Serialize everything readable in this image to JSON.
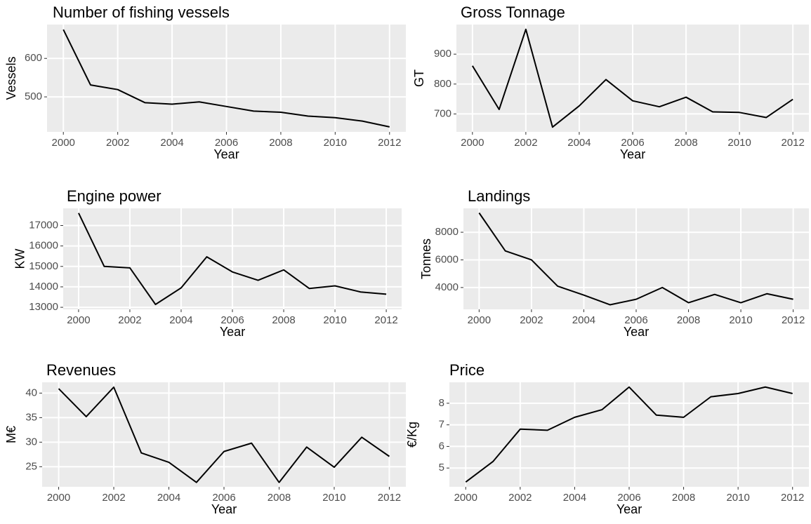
{
  "chart_data": [
    {
      "type": "line",
      "title": "Number of fishing vessels",
      "x_label": "Year",
      "y_label": "Vessels",
      "color": "#000000",
      "grid": true,
      "x": [
        2000,
        2001,
        2002,
        2003,
        2004,
        2005,
        2006,
        2007,
        2008,
        2009,
        2010,
        2011,
        2012
      ],
      "values": [
        675,
        531,
        519,
        485,
        481,
        487,
        475,
        463,
        460,
        450,
        446,
        437,
        422
      ],
      "xlim": [
        1999.4,
        2012.6
      ],
      "xticks": [
        2000,
        2002,
        2004,
        2006,
        2008,
        2010,
        2012
      ],
      "ylim": [
        409,
        688
      ],
      "yticks": [
        500,
        600
      ]
    },
    {
      "type": "line",
      "title": "Gross Tonnage",
      "x_label": "Year",
      "y_label": "GT",
      "color": "#000000",
      "grid": true,
      "x": [
        2000,
        2001,
        2002,
        2003,
        2004,
        2005,
        2006,
        2007,
        2008,
        2009,
        2010,
        2011,
        2012
      ],
      "values": [
        861,
        715,
        983,
        656,
        727,
        815,
        744,
        724,
        756,
        707,
        705,
        688,
        749
      ],
      "xlim": [
        1999.4,
        2012.6
      ],
      "xticks": [
        2000,
        2002,
        2004,
        2006,
        2008,
        2010,
        2012
      ],
      "ylim": [
        640,
        999
      ],
      "yticks": [
        700,
        800,
        900
      ]
    },
    {
      "type": "line",
      "title": "Engine power",
      "x_label": "Year",
      "y_label": "KW",
      "color": "#000000",
      "grid": true,
      "x": [
        2000,
        2001,
        2002,
        2003,
        2004,
        2005,
        2006,
        2007,
        2008,
        2009,
        2010,
        2011,
        2012
      ],
      "values": [
        17610,
        15000,
        14930,
        13140,
        13950,
        15470,
        14730,
        14320,
        14830,
        13920,
        14050,
        13750,
        13640
      ],
      "xlim": [
        1999.4,
        2012.6
      ],
      "xticks": [
        2000,
        2002,
        2004,
        2006,
        2008,
        2010,
        2012
      ],
      "ylim": [
        12900,
        17840
      ],
      "yticks": [
        13000,
        14000,
        15000,
        16000,
        17000
      ]
    },
    {
      "type": "line",
      "title": "Landings",
      "x_label": "Year",
      "y_label": "Tonnes",
      "color": "#000000",
      "grid": true,
      "x": [
        2000,
        2001,
        2002,
        2003,
        2004,
        2005,
        2006,
        2007,
        2008,
        2009,
        2010,
        2011,
        2012
      ],
      "values": [
        9400,
        6650,
        6000,
        4100,
        3450,
        2750,
        3150,
        4000,
        2900,
        3500,
        2900,
        3550,
        3150
      ],
      "xlim": [
        1999.4,
        2012.6
      ],
      "xticks": [
        2000,
        2002,
        2004,
        2006,
        2008,
        2010,
        2012
      ],
      "ylim": [
        2420,
        9730
      ],
      "yticks": [
        4000,
        6000,
        8000
      ]
    },
    {
      "type": "line",
      "title": "Revenues",
      "x_label": "Year",
      "y_label": "M€",
      "color": "#000000",
      "grid": true,
      "x": [
        2000,
        2001,
        2002,
        2003,
        2004,
        2005,
        2006,
        2007,
        2008,
        2009,
        2010,
        2011,
        2012
      ],
      "values": [
        40.9,
        35.2,
        41.2,
        27.8,
        25.9,
        21.8,
        28.1,
        29.8,
        21.8,
        29.0,
        24.9,
        31.0,
        27.1
      ],
      "xlim": [
        1999.4,
        2012.6
      ],
      "xticks": [
        2000,
        2002,
        2004,
        2006,
        2008,
        2010,
        2012
      ],
      "ylim": [
        20.9,
        42.2
      ],
      "yticks": [
        25,
        30,
        35,
        40
      ]
    },
    {
      "type": "line",
      "title": "Price",
      "x_label": "Year",
      "y_label": "€/Kg",
      "color": "#000000",
      "grid": true,
      "x": [
        2000,
        2001,
        2002,
        2003,
        2004,
        2005,
        2006,
        2007,
        2008,
        2009,
        2010,
        2011,
        2012
      ],
      "values": [
        4.35,
        5.3,
        6.8,
        6.75,
        7.35,
        7.7,
        8.75,
        7.45,
        7.35,
        8.3,
        8.45,
        8.75,
        8.45
      ],
      "xlim": [
        1999.4,
        2012.6
      ],
      "xticks": [
        2000,
        2002,
        2004,
        2006,
        2008,
        2010,
        2012
      ],
      "ylim": [
        4.13,
        8.97
      ],
      "yticks": [
        5,
        6,
        7,
        8
      ]
    }
  ]
}
